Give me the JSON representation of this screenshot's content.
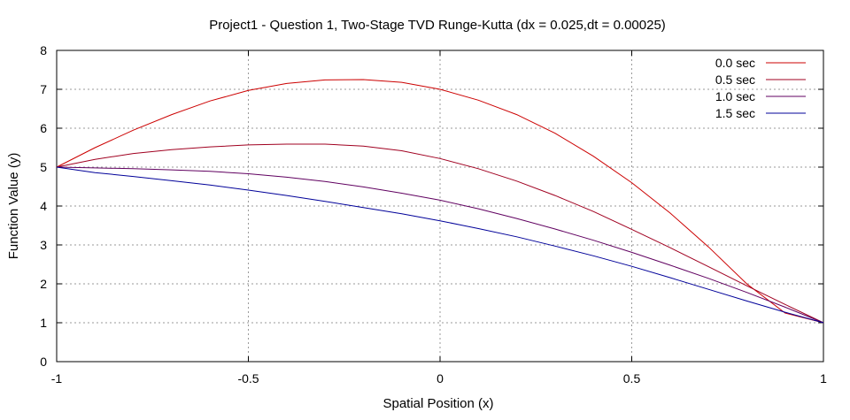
{
  "chart_data": {
    "type": "line",
    "title": "Project1 - Question 1, Two-Stage TVD Runge-Kutta (dx = 0.025,dt = 0.00025)",
    "xlabel": "Spatial Position (x)",
    "ylabel": "Function Value (y)",
    "xlim": [
      -1,
      1
    ],
    "ylim": [
      0,
      8
    ],
    "xticks": [
      -1,
      -0.5,
      0,
      0.5,
      1
    ],
    "xtick_labels": [
      "-1",
      "-0.5",
      "0",
      "0.5",
      "1"
    ],
    "yticks": [
      0,
      1,
      2,
      3,
      4,
      5,
      6,
      7,
      8
    ],
    "ytick_labels": [
      "0",
      "1",
      "2",
      "3",
      "4",
      "5",
      "6",
      "7",
      "8"
    ],
    "grid": true,
    "legend_position": "top-right",
    "series": [
      {
        "name": "0.0 sec",
        "color": "#cc0000",
        "x": [
          -1,
          -0.9,
          -0.8,
          -0.7,
          -0.6,
          -0.5,
          -0.4,
          -0.3,
          -0.2,
          -0.1,
          0,
          0.1,
          0.2,
          0.3,
          0.4,
          0.5,
          0.6,
          0.7,
          0.8,
          0.9,
          1
        ],
        "y": [
          5.0,
          5.5,
          5.95,
          6.35,
          6.7,
          6.97,
          7.15,
          7.24,
          7.25,
          7.18,
          7.0,
          6.72,
          6.35,
          5.87,
          5.28,
          4.6,
          3.82,
          2.95,
          2.0,
          1.25,
          1.0
        ]
      },
      {
        "name": "0.5 sec",
        "color": "#a00020",
        "x": [
          -1,
          -0.9,
          -0.8,
          -0.7,
          -0.6,
          -0.5,
          -0.4,
          -0.3,
          -0.2,
          -0.1,
          0,
          0.1,
          0.2,
          0.3,
          0.4,
          0.5,
          0.6,
          0.7,
          0.8,
          0.9,
          1
        ],
        "y": [
          5.0,
          5.2,
          5.35,
          5.45,
          5.52,
          5.57,
          5.59,
          5.59,
          5.54,
          5.42,
          5.22,
          4.96,
          4.64,
          4.27,
          3.86,
          3.4,
          2.93,
          2.44,
          1.95,
          1.47,
          1.0
        ]
      },
      {
        "name": "1.0 sec",
        "color": "#600060",
        "x": [
          -1,
          -0.9,
          -0.8,
          -0.7,
          -0.6,
          -0.5,
          -0.4,
          -0.3,
          -0.2,
          -0.1,
          0,
          0.1,
          0.2,
          0.3,
          0.4,
          0.5,
          0.6,
          0.7,
          0.8,
          0.9,
          1
        ],
        "y": [
          5.0,
          4.98,
          4.96,
          4.93,
          4.89,
          4.83,
          4.74,
          4.63,
          4.49,
          4.33,
          4.15,
          3.93,
          3.68,
          3.41,
          3.12,
          2.81,
          2.48,
          2.14,
          1.78,
          1.4,
          1.0
        ]
      },
      {
        "name": "1.5 sec",
        "color": "#000099",
        "x": [
          -1,
          -0.9,
          -0.8,
          -0.7,
          -0.6,
          -0.5,
          -0.4,
          -0.3,
          -0.2,
          -0.1,
          0,
          0.1,
          0.2,
          0.3,
          0.4,
          0.5,
          0.6,
          0.7,
          0.8,
          0.9,
          1
        ],
        "y": [
          5.0,
          4.86,
          4.76,
          4.65,
          4.54,
          4.41,
          4.27,
          4.12,
          3.96,
          3.8,
          3.62,
          3.42,
          3.21,
          2.97,
          2.72,
          2.45,
          2.16,
          1.86,
          1.56,
          1.27,
          1.0
        ]
      }
    ]
  }
}
